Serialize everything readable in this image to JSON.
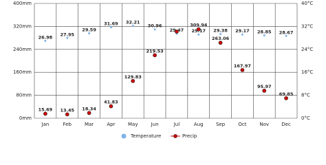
{
  "chart_data": {
    "type": "climate",
    "categories": [
      "Jan",
      "Feb",
      "Mar",
      "Apr",
      "May",
      "Jun",
      "Jul",
      "Aug",
      "Sep",
      "Oct",
      "Nov",
      "Dec"
    ],
    "series": [
      {
        "name": "Temperature",
        "color": "#7fb3e6",
        "axis": "y2",
        "values": [
          26.98,
          27.95,
          29.59,
          31.69,
          32.21,
          30.96,
          29.47,
          29.17,
          29.38,
          29.17,
          28.85,
          28.67
        ]
      },
      {
        "name": "Precip",
        "color": "#cc0000",
        "values": [
          15.69,
          13.45,
          18.34,
          41.83,
          129.83,
          219.53,
          302,
          309.94,
          263.06,
          167.97,
          95.97,
          69.85
        ],
        "value_labels": [
          "15.69",
          "13.45",
          "18.34",
          "41.83",
          "129.83",
          "219.53",
          null,
          "309.94",
          "263.06",
          "167.97",
          "95.97",
          "69.85"
        ]
      }
    ],
    "ylim": [
      0,
      400
    ],
    "yticks": [
      {
        "value": 0,
        "label": "0mm"
      },
      {
        "value": 80,
        "label": "80mm"
      },
      {
        "value": 160,
        "label": "160mm"
      },
      {
        "value": 240,
        "label": "240mm"
      },
      {
        "value": 320,
        "label": "320mm"
      },
      {
        "value": 400,
        "label": "400mm"
      }
    ],
    "y2lim": [
      0,
      40
    ],
    "y2ticks": [
      {
        "value": 0,
        "label": "0°C"
      },
      {
        "value": 8,
        "label": "8°C"
      },
      {
        "value": 16,
        "label": "16°C"
      },
      {
        "value": 24,
        "label": "24°C"
      },
      {
        "value": 32,
        "label": "32°C"
      },
      {
        "value": 40,
        "label": "40°C"
      }
    ],
    "grid": true
  }
}
